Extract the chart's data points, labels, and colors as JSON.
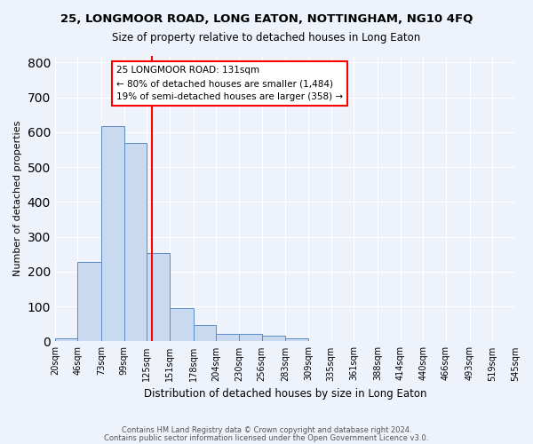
{
  "title1": "25, LONGMOOR ROAD, LONG EATON, NOTTINGHAM, NG10 4FQ",
  "title2": "Size of property relative to detached houses in Long Eaton",
  "xlabel": "Distribution of detached houses by size in Long Eaton",
  "ylabel": "Number of detached properties",
  "bin_labels": [
    "20sqm",
    "46sqm",
    "73sqm",
    "99sqm",
    "125sqm",
    "151sqm",
    "178sqm",
    "204sqm",
    "230sqm",
    "256sqm",
    "283sqm",
    "309sqm",
    "335sqm",
    "361sqm",
    "388sqm",
    "414sqm",
    "440sqm",
    "466sqm",
    "493sqm",
    "519sqm",
    "545sqm"
  ],
  "bar_heights": [
    10,
    228,
    617,
    570,
    254,
    95,
    47,
    22,
    22,
    17,
    10,
    0,
    0,
    0,
    0,
    0,
    0,
    0,
    0,
    0
  ],
  "bin_edges": [
    20,
    46,
    73,
    99,
    125,
    151,
    178,
    204,
    230,
    256,
    283,
    309,
    335,
    361,
    388,
    414,
    440,
    466,
    493,
    519,
    545
  ],
  "bar_color": "#c9d9f0",
  "bar_edge_color": "#5b8cc8",
  "vline_x": 131,
  "vline_color": "red",
  "annotation_text": "25 LONGMOOR ROAD: 131sqm\n← 80% of detached houses are smaller (1,484)\n19% of semi-detached houses are larger (358) →",
  "annotation_box_color": "white",
  "annotation_box_edge": "red",
  "ylim": [
    0,
    820
  ],
  "yticks": [
    0,
    100,
    200,
    300,
    400,
    500,
    600,
    700,
    800
  ],
  "footer1": "Contains HM Land Registry data © Crown copyright and database right 2024.",
  "footer2": "Contains public sector information licensed under the Open Government Licence v3.0.",
  "bg_color": "#eef2fa",
  "grid_color": "#ffffff"
}
